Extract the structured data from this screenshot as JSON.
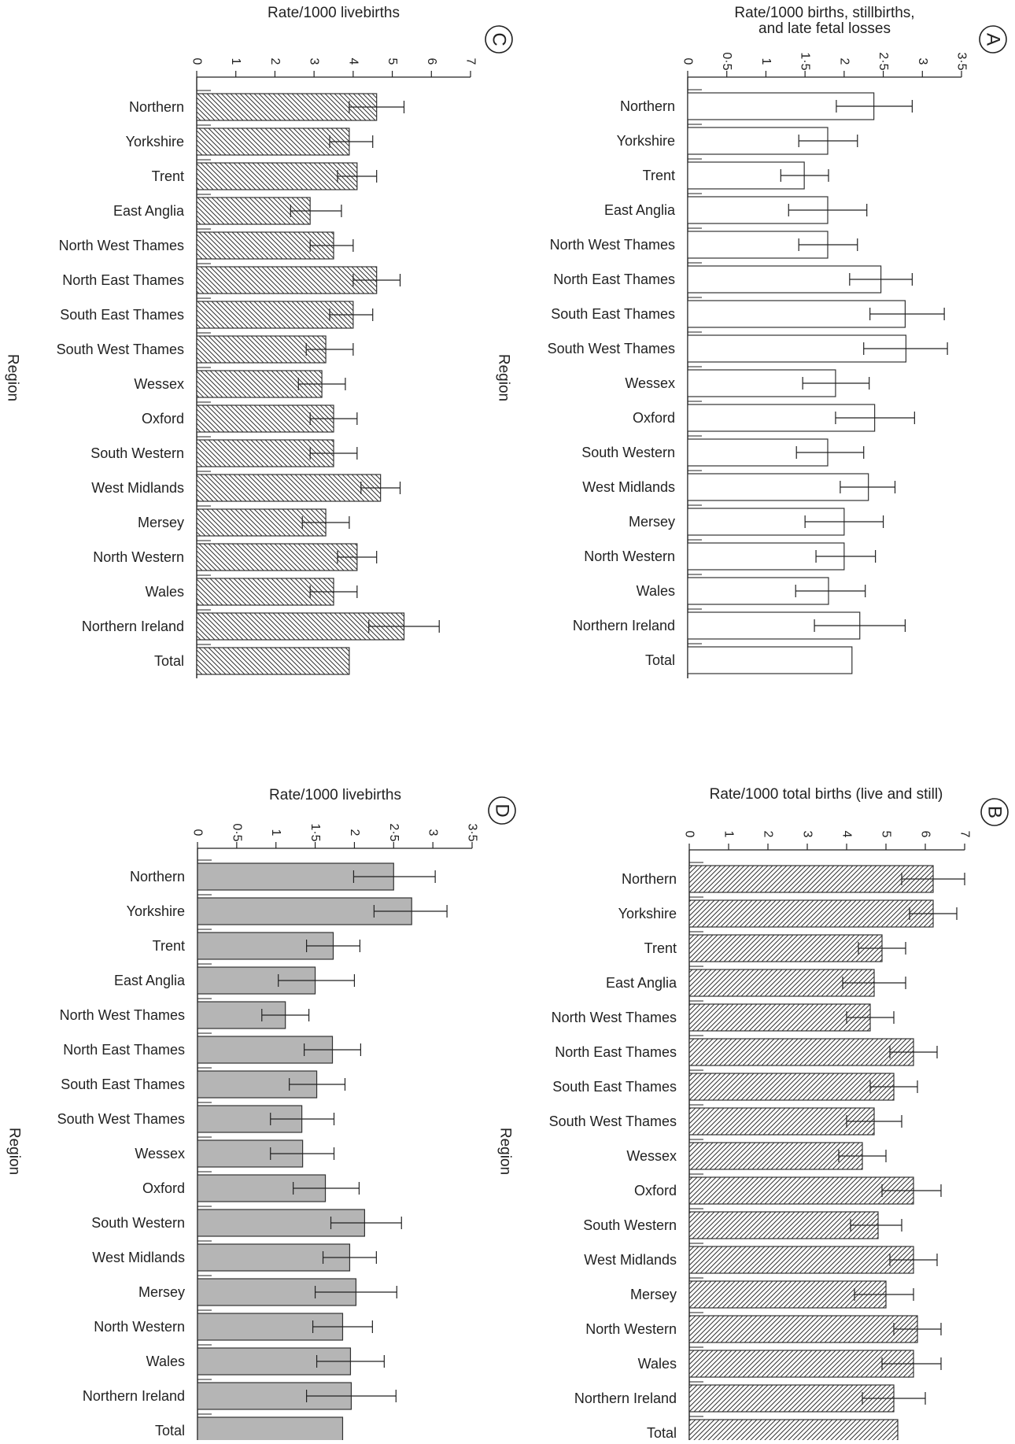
{
  "region_label": "Region",
  "chart_data": [
    {
      "id": "A",
      "panel_letter": "A",
      "type": "bar",
      "orientation": "horizontal",
      "fill": "white",
      "title": "Rate/1000 births, stillbirths,\nand late fetal losses",
      "xlabel": "Rate/1000 births, stillbirths, and late fetal losses",
      "ylabel": "Region",
      "xlim": [
        0,
        3.5
      ],
      "ticks": [
        0,
        0.5,
        1,
        1.5,
        2,
        2.5,
        3,
        3.5
      ],
      "tick_labels": [
        "0",
        "0·5",
        "1",
        "1·5",
        "2",
        "2·5",
        "3",
        "3·5"
      ],
      "categories": [
        "Northern",
        "Yorkshire",
        "Trent",
        "East Anglia",
        "North West Thames",
        "North East Thames",
        "South East Thames",
        "South West Thames",
        "Wessex",
        "Oxford",
        "South Western",
        "West Midlands",
        "Mersey",
        "North Western",
        "Wales",
        "Northern Ireland",
        "Total"
      ],
      "values": [
        2.38,
        1.79,
        1.49,
        1.79,
        1.79,
        2.47,
        2.78,
        2.79,
        1.89,
        2.39,
        1.79,
        2.31,
        2.0,
        2.0,
        1.8,
        2.2,
        2.1
      ],
      "err_low": [
        1.9,
        1.42,
        1.19,
        1.29,
        1.42,
        2.07,
        2.33,
        2.25,
        1.47,
        1.89,
        1.39,
        1.95,
        1.5,
        1.64,
        1.38,
        1.62,
        null
      ],
      "err_high": [
        2.87,
        2.17,
        1.8,
        2.29,
        2.17,
        2.87,
        3.28,
        3.32,
        2.32,
        2.9,
        2.25,
        2.65,
        2.5,
        2.4,
        2.27,
        2.78,
        null
      ]
    },
    {
      "id": "B",
      "panel_letter": "B",
      "type": "bar",
      "orientation": "horizontal",
      "fill": "hatched-right",
      "title": "Rate/1000 total births (live and still)",
      "xlabel": "Rate/1000 total births (live and still)",
      "ylabel": "Region",
      "xlim": [
        0,
        7
      ],
      "ticks": [
        0,
        1,
        2,
        3,
        4,
        5,
        6,
        7
      ],
      "tick_labels": [
        "0",
        "1",
        "2",
        "3",
        "4",
        "5",
        "6",
        "7"
      ],
      "categories": [
        "Northern",
        "Yorkshire",
        "Trent",
        "East Anglia",
        "North West Thames",
        "North East Thames",
        "South East Thames",
        "South West Thames",
        "Wessex",
        "Oxford",
        "South Western",
        "West Midlands",
        "Mersey",
        "North Western",
        "Wales",
        "Northern Ireland",
        "Total"
      ],
      "values": [
        6.2,
        6.2,
        4.9,
        4.7,
        4.6,
        5.7,
        5.2,
        4.7,
        4.4,
        5.7,
        4.8,
        5.7,
        5.0,
        5.8,
        5.7,
        5.2,
        5.3
      ],
      "err_low": [
        5.4,
        5.6,
        4.3,
        3.9,
        4.0,
        5.1,
        4.6,
        4.0,
        3.8,
        4.9,
        4.1,
        5.1,
        4.2,
        5.2,
        4.9,
        4.4,
        null
      ],
      "err_high": [
        7.0,
        6.8,
        5.5,
        5.5,
        5.2,
        6.3,
        5.8,
        5.4,
        5.0,
        6.4,
        5.4,
        6.3,
        5.7,
        6.4,
        6.4,
        6.0,
        null
      ]
    },
    {
      "id": "C",
      "panel_letter": "C",
      "type": "bar",
      "orientation": "horizontal",
      "fill": "hatched-left",
      "title": "Rate/1000 livebirths",
      "xlabel": "Rate/1000 livebirths",
      "ylabel": "Region",
      "xlim": [
        0,
        7
      ],
      "ticks": [
        0,
        1,
        2,
        3,
        4,
        5,
        6,
        7
      ],
      "tick_labels": [
        "0",
        "1",
        "2",
        "3",
        "4",
        "5",
        "6",
        "7"
      ],
      "categories": [
        "Northern",
        "Yorkshire",
        "Trent",
        "East Anglia",
        "North West Thames",
        "North East Thames",
        "South East Thames",
        "South West Thames",
        "Wessex",
        "Oxford",
        "South Western",
        "West Midlands",
        "Mersey",
        "North Western",
        "Wales",
        "Northern Ireland",
        "Total"
      ],
      "values": [
        4.6,
        3.9,
        4.1,
        2.9,
        3.5,
        4.6,
        4.0,
        3.3,
        3.2,
        3.5,
        3.5,
        4.7,
        3.3,
        4.1,
        3.5,
        5.3,
        3.9
      ],
      "err_low": [
        3.9,
        3.4,
        3.6,
        2.4,
        2.9,
        4.0,
        3.4,
        2.8,
        2.6,
        2.9,
        2.9,
        4.2,
        2.7,
        3.6,
        2.9,
        4.4,
        null
      ],
      "err_high": [
        5.3,
        4.5,
        4.6,
        3.7,
        4.0,
        5.2,
        4.5,
        4.0,
        3.8,
        4.1,
        4.1,
        5.2,
        3.9,
        4.6,
        4.1,
        6.2,
        null
      ]
    },
    {
      "id": "D",
      "panel_letter": "D",
      "type": "bar",
      "orientation": "horizontal",
      "fill": "grey",
      "title": "Rate/1000 livebirths",
      "xlabel": "Rate/1000 livebirths",
      "ylabel": "Region",
      "xlim": [
        0,
        3.5
      ],
      "ticks": [
        0,
        0.5,
        1,
        1.5,
        2,
        2.5,
        3,
        3.5
      ],
      "tick_labels": [
        "0",
        "0·5",
        "1",
        "1·5",
        "2",
        "2·5",
        "3",
        "3·5"
      ],
      "categories": [
        "Northern",
        "Yorkshire",
        "Trent",
        "East Anglia",
        "North West Thames",
        "North East Thames",
        "South East Thames",
        "South West Thames",
        "Wessex",
        "Oxford",
        "South Western",
        "West Midlands",
        "Mersey",
        "North Western",
        "Wales",
        "Northern Ireland",
        "Total"
      ],
      "values": [
        2.5,
        2.73,
        1.73,
        1.5,
        1.12,
        1.72,
        1.52,
        1.33,
        1.34,
        1.63,
        2.13,
        1.94,
        2.02,
        1.85,
        1.95,
        1.96,
        1.85
      ],
      "err_low": [
        1.99,
        2.25,
        1.39,
        1.03,
        0.82,
        1.36,
        1.17,
        0.93,
        0.93,
        1.22,
        1.7,
        1.6,
        1.5,
        1.47,
        1.52,
        1.39,
        null
      ],
      "err_high": [
        3.03,
        3.18,
        2.07,
        2.0,
        1.42,
        2.08,
        1.88,
        1.74,
        1.74,
        2.06,
        2.6,
        2.28,
        2.54,
        2.23,
        2.38,
        2.53,
        null
      ]
    }
  ]
}
